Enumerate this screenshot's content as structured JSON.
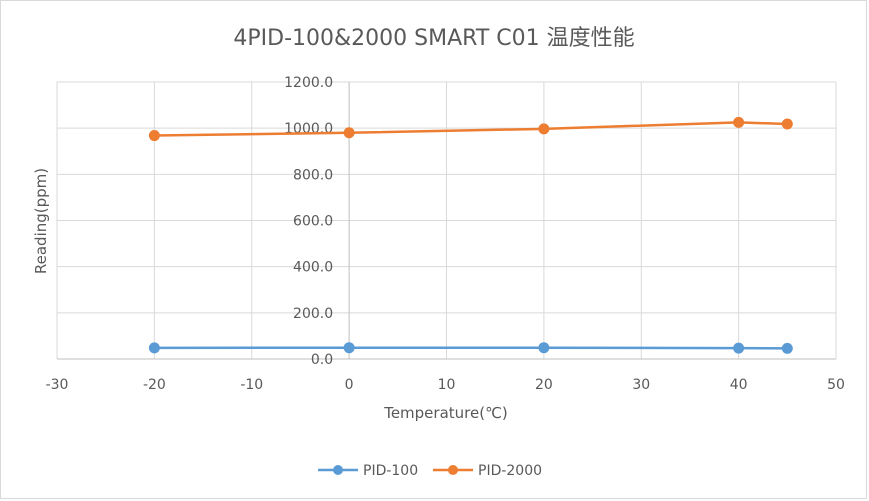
{
  "chart_data": {
    "type": "line",
    "title": "4PID-100&2000 SMART C01 温度性能",
    "xlabel": "Temperature(℃)",
    "ylabel": "Reading(ppm)",
    "xlim": [
      -30,
      50
    ],
    "ylim": [
      0,
      1200
    ],
    "x_ticks": [
      -30,
      -20,
      -10,
      0,
      10,
      20,
      30,
      40,
      50
    ],
    "x_tick_labels": [
      "-30",
      "-20",
      "-10",
      "0",
      "10",
      "20",
      "30",
      "40",
      "50"
    ],
    "y_ticks": [
      0,
      200,
      400,
      600,
      800,
      1000,
      1200
    ],
    "y_tick_labels": [
      "0.0",
      "200.0",
      "400.0",
      "600.0",
      "800.0",
      "1000.0",
      "1200.0"
    ],
    "grid": true,
    "legend_position": "bottom",
    "series": [
      {
        "name": "PID-100",
        "color": "#5b9bd5",
        "x": [
          -20,
          0,
          20,
          40,
          45
        ],
        "values": [
          48,
          49,
          49,
          47,
          46
        ]
      },
      {
        "name": "PID-2000",
        "color": "#ed7d31",
        "x": [
          -20,
          0,
          20,
          40,
          45
        ],
        "values": [
          968,
          980,
          997,
          1025,
          1018
        ]
      }
    ]
  }
}
